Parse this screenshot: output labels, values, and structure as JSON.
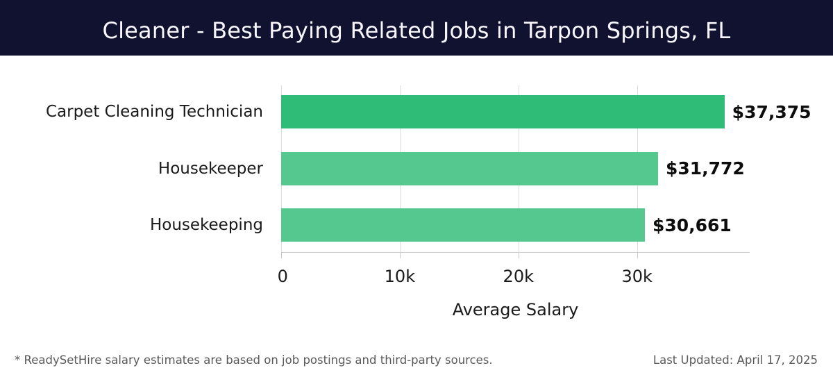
{
  "header": {
    "title": "Cleaner - Best Paying Related Jobs in Tarpon Springs, FL",
    "bg_color": "#10122f",
    "text_color": "#f8f7ff"
  },
  "chart_data": {
    "type": "bar",
    "orientation": "horizontal",
    "title": "Cleaner - Best Paying Related Jobs in Tarpon Springs, FL",
    "categories": [
      "Carpet Cleaning Technician",
      "Housekeeper",
      "Housekeeping"
    ],
    "values": [
      37375,
      31772,
      30661
    ],
    "value_labels": [
      "$37,375",
      "$31,772",
      "$30,661"
    ],
    "bar_colors": [
      "#2ebc77",
      "#55c890",
      "#55c890"
    ],
    "xlabel": "Average Salary",
    "ylabel": "",
    "x_ticks": [
      "0",
      "10k",
      "20k",
      "30k"
    ],
    "x_tick_values": [
      0,
      10000,
      20000,
      30000
    ],
    "xlim": [
      0,
      39500
    ],
    "grid": true,
    "gridline_color": "#dcdcdc",
    "legend": "none"
  },
  "footer": {
    "disclaimer": "* ReadySetHire salary estimates are based on job postings and third-party sources.",
    "last_updated": "Last Updated: April 17, 2025"
  }
}
